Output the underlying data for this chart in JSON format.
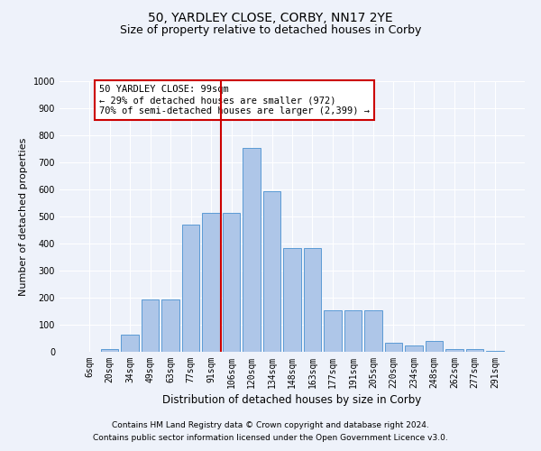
{
  "title": "50, YARDLEY CLOSE, CORBY, NN17 2YE",
  "subtitle": "Size of property relative to detached houses in Corby",
  "xlabel": "Distribution of detached houses by size in Corby",
  "ylabel": "Number of detached properties",
  "categories": [
    "6sqm",
    "20sqm",
    "34sqm",
    "49sqm",
    "63sqm",
    "77sqm",
    "91sqm",
    "106sqm",
    "120sqm",
    "134sqm",
    "148sqm",
    "163sqm",
    "177sqm",
    "191sqm",
    "205sqm",
    "220sqm",
    "234sqm",
    "248sqm",
    "262sqm",
    "277sqm",
    "291sqm"
  ],
  "values": [
    0,
    10,
    65,
    195,
    195,
    470,
    515,
    515,
    755,
    595,
    385,
    385,
    155,
    155,
    155,
    35,
    25,
    40,
    10,
    10,
    5
  ],
  "bar_color": "#aec6e8",
  "bar_edge_color": "#5b9bd5",
  "background_color": "#eef2fa",
  "grid_color": "#ffffff",
  "vline_x_index": 7,
  "vline_color": "#cc0000",
  "annotation_line1": "50 YARDLEY CLOSE: 99sqm",
  "annotation_line2": "← 29% of detached houses are smaller (972)",
  "annotation_line3": "70% of semi-detached houses are larger (2,399) →",
  "annotation_box_color": "#ffffff",
  "annotation_box_edge_color": "#cc0000",
  "ylim": [
    0,
    1000
  ],
  "yticks": [
    0,
    100,
    200,
    300,
    400,
    500,
    600,
    700,
    800,
    900,
    1000
  ],
  "footer_line1": "Contains HM Land Registry data © Crown copyright and database right 2024.",
  "footer_line2": "Contains public sector information licensed under the Open Government Licence v3.0.",
  "title_fontsize": 10,
  "subtitle_fontsize": 9,
  "xlabel_fontsize": 8.5,
  "ylabel_fontsize": 8,
  "tick_fontsize": 7,
  "annotation_fontsize": 7.5,
  "footer_fontsize": 6.5
}
